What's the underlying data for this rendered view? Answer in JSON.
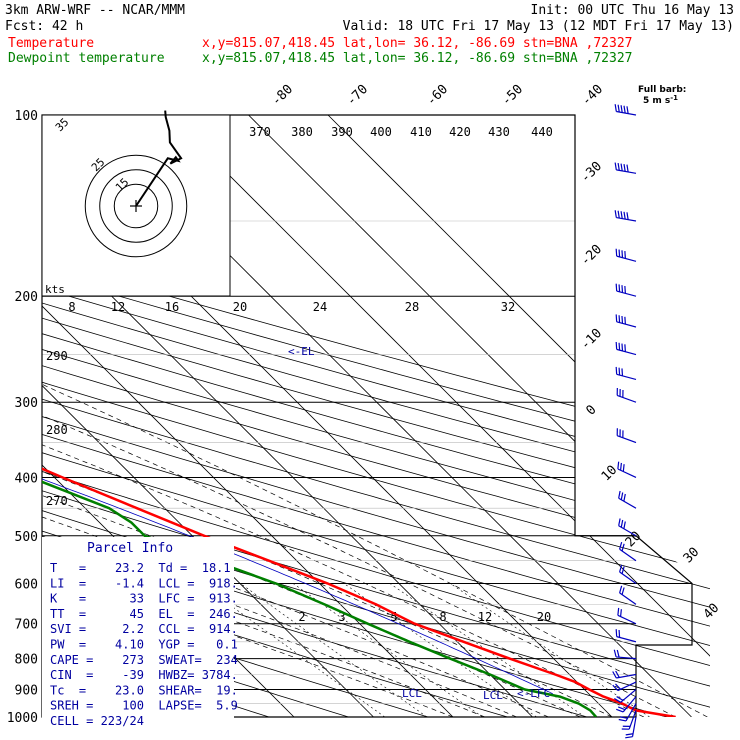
{
  "header": {
    "line1_left": "3km ARW-WRF -- NCAR/MMM",
    "line1_right": "Init: 00 UTC Thu 16 May 13",
    "fcst": "Fcst:   42 h",
    "valid": "Valid: 18 UTC Fri 17 May 13 (12 MDT Fri 17 May 13)",
    "temperature_label": "Temperature",
    "temperature_info": "x,y=815.07,418.45   lat,lon= 36.12, -86.69  stn=BNA ,72327",
    "dewpoint_label": "Dewpoint temperature",
    "dewpoint_info": "x,y=815.07,418.45   lat,lon= 36.12, -86.69  stn=BNA ,72327"
  },
  "colors": {
    "temperature": "#ff0000",
    "dewpoint": "#008000",
    "parcel_info": "#0000a0",
    "wind_barbs": "#0000c0",
    "lines": "#000000"
  },
  "wind_key": {
    "line1": "Full barb:",
    "line2": "5 m s",
    "sup": "-1"
  },
  "hodograph": {
    "units": "kts",
    "ring_labels": [
      "35",
      "25",
      "15"
    ],
    "x_labels": [
      "8",
      "12",
      "16",
      "20",
      "24",
      "28",
      "32"
    ],
    "trace": [
      [
        0.0,
        0.0
      ],
      [
        6.0,
        9.0
      ],
      [
        8.0,
        8.5
      ],
      [
        7.5,
        9.2
      ],
      [
        6.5,
        8.0
      ],
      [
        8.5,
        9.0
      ],
      [
        6.4,
        12.0
      ],
      [
        6.3,
        14.2
      ],
      [
        5.6,
        16.8
      ],
      [
        5.5,
        18.0
      ]
    ]
  },
  "parcel_info": {
    "title": "Parcel Info",
    "rows": [
      "T   =    23.2  Td =  18.1",
      "LI  =    -1.4  LCL =  918.",
      "K   =      33  LFC =  913.",
      "TT  =      45  EL  =  246.",
      "SVI =     2.2  CCL =  914.",
      "PW  =    4.10  YGP =   0.1",
      "CAPE =    273  SWEAT=  234",
      "CIN  =    -39  HWBZ= 3784.",
      "Tc  =    23.0  SHEAR=  19.",
      "SREH =    100  LAPSE=  5.9",
      "CELL = 223/24"
    ]
  },
  "levels": {
    "el": "<-EL",
    "lcl_left": "LCL",
    "lcl_right": "LCL",
    "lfc": "<-LFC"
  },
  "chart_data": {
    "type": "line",
    "title": "",
    "xlabel": "",
    "ylabel": "",
    "pressure_range_hPa": [
      1000,
      100
    ],
    "temperature_range_C": [
      -40,
      50
    ],
    "log_pressure": true,
    "isobars_hPa": [
      100,
      200,
      300,
      400,
      500,
      600,
      700,
      800,
      900,
      1000
    ],
    "pressure_tick_labels": [
      "100",
      "200",
      "300",
      "400",
      "500",
      "600",
      "700",
      "800",
      "900",
      "1000"
    ],
    "isotherm_labels_C": [
      "-80",
      "-70",
      "-60",
      "-50",
      "-40",
      "-30",
      "-20",
      "-10",
      "0",
      "10",
      "20",
      "30",
      "40"
    ],
    "theta_labels_K": [
      "370",
      "380",
      "390",
      "400",
      "410",
      "420",
      "430",
      "440"
    ],
    "low_theta_labels_K": [
      "290",
      "280",
      "270"
    ],
    "mixing_ratio_labels": [
      "2",
      "3",
      "5",
      "8",
      "12",
      "20"
    ],
    "series": [
      {
        "name": "Temperature",
        "points": [
          [
            1000,
            28.0
          ],
          [
            975,
            23.8
          ],
          [
            950,
            23.0
          ],
          [
            925,
            21.5
          ],
          [
            900,
            20.6
          ],
          [
            875,
            19.8
          ],
          [
            850,
            18.2
          ],
          [
            800,
            14.5
          ],
          [
            750,
            10.8
          ],
          [
            700,
            6.9
          ],
          [
            650,
            4.5
          ],
          [
            600,
            1.0
          ],
          [
            550,
            -3.5
          ],
          [
            500,
            -8.5
          ],
          [
            450,
            -13.5
          ],
          [
            400,
            -19.0
          ],
          [
            350,
            -25.0
          ],
          [
            300,
            -34.0
          ],
          [
            250,
            -44.0
          ],
          [
            215,
            -52.0
          ],
          [
            200,
            -56.0
          ],
          [
            175,
            -61.0
          ],
          [
            150,
            -65.0
          ],
          [
            125,
            -66.5
          ],
          [
            100,
            -69.0
          ]
        ]
      },
      {
        "name": "Dewpoint temperature",
        "points": [
          [
            1000,
            18.0
          ],
          [
            975,
            18.1
          ],
          [
            950,
            17.5
          ],
          [
            925,
            16.0
          ],
          [
            900,
            12.5
          ],
          [
            850,
            10.0
          ],
          [
            800,
            7.0
          ],
          [
            750,
            4.0
          ],
          [
            700,
            1.0
          ],
          [
            650,
            -2.0
          ],
          [
            600,
            -5.5
          ],
          [
            550,
            -10.5
          ],
          [
            500,
            -16.0
          ],
          [
            475,
            -16.0
          ],
          [
            450,
            -17.0
          ],
          [
            400,
            -23.0
          ],
          [
            375,
            -28.0
          ],
          [
            350,
            -40.0
          ],
          [
            325,
            -46.0
          ],
          [
            300,
            -50.0
          ],
          [
            250,
            -58.0
          ],
          [
            200,
            -75.0
          ],
          [
            175,
            -82.0
          ],
          [
            150,
            -91.0
          ],
          [
            125,
            -94.0
          ],
          [
            110,
            -95.0
          ],
          [
            100,
            -95.5
          ]
        ]
      }
    ],
    "wind_barbs": [
      {
        "p": 1000,
        "dir": 190,
        "spd": 10
      },
      {
        "p": 975,
        "dir": 200,
        "spd": 10
      },
      {
        "p": 950,
        "dir": 210,
        "spd": 10
      },
      {
        "p": 925,
        "dir": 220,
        "spd": 10
      },
      {
        "p": 900,
        "dir": 230,
        "spd": 10
      },
      {
        "p": 875,
        "dir": 245,
        "spd": 10
      },
      {
        "p": 850,
        "dir": 260,
        "spd": 10
      },
      {
        "p": 800,
        "dir": 275,
        "spd": 10
      },
      {
        "p": 750,
        "dir": 285,
        "spd": 10
      },
      {
        "p": 700,
        "dir": 295,
        "spd": 10
      },
      {
        "p": 650,
        "dir": 305,
        "spd": 10
      },
      {
        "p": 600,
        "dir": 305,
        "spd": 10
      },
      {
        "p": 550,
        "dir": 305,
        "spd": 10
      },
      {
        "p": 500,
        "dir": 300,
        "spd": 15
      },
      {
        "p": 450,
        "dir": 300,
        "spd": 15
      },
      {
        "p": 400,
        "dir": 295,
        "spd": 15
      },
      {
        "p": 350,
        "dir": 290,
        "spd": 15
      },
      {
        "p": 300,
        "dir": 290,
        "spd": 15
      },
      {
        "p": 275,
        "dir": 285,
        "spd": 15
      },
      {
        "p": 250,
        "dir": 285,
        "spd": 20
      },
      {
        "p": 225,
        "dir": 285,
        "spd": 20
      },
      {
        "p": 200,
        "dir": 285,
        "spd": 20
      },
      {
        "p": 175,
        "dir": 285,
        "spd": 20
      },
      {
        "p": 150,
        "dir": 280,
        "spd": 25
      },
      {
        "p": 125,
        "dir": 280,
        "spd": 25
      },
      {
        "p": 100,
        "dir": 280,
        "spd": 25
      }
    ]
  }
}
